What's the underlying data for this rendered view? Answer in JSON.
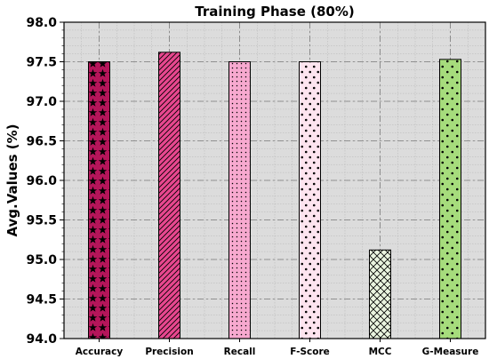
{
  "chart_data": {
    "type": "bar",
    "title": "Training Phase (80%)",
    "xlabel": "",
    "ylabel": "Avg.Values (%)",
    "categories": [
      "Accuracy",
      "Precision",
      "Recall",
      "F-Score",
      "MCC",
      "G-Measure"
    ],
    "values": [
      97.5,
      97.62,
      97.5,
      97.5,
      95.12,
      97.53
    ],
    "ylim": [
      94.0,
      98.0
    ],
    "yticks": [
      "94.0",
      "94.5",
      "95.0",
      "95.5",
      "96.0",
      "96.5",
      "97.0",
      "97.5",
      "98.0"
    ],
    "grid": true,
    "legend": "none",
    "bar_styles": [
      {
        "fill": "#b5155a",
        "hatch": "stars"
      },
      {
        "fill": "#e8478f",
        "hatch": "diagonal"
      },
      {
        "fill": "#f7a9cf",
        "hatch": "small-dots"
      },
      {
        "fill": "#fde4ef",
        "hatch": "dots"
      },
      {
        "fill": "#eaf5df",
        "hatch": "crosshatch"
      },
      {
        "fill": "#a6dc7c",
        "hatch": "dots"
      }
    ],
    "plot_background": "#dcdcdc"
  }
}
